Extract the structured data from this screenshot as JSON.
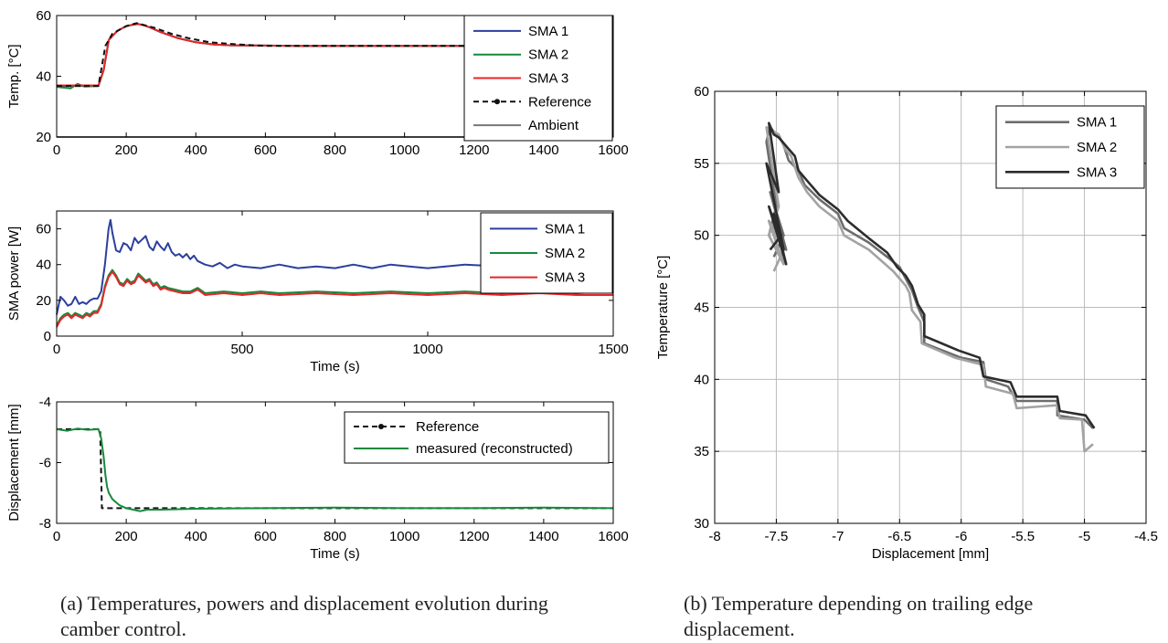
{
  "chart_data": [
    {
      "type": "line",
      "id": "temp",
      "xlabel": "",
      "ylabel": "Temp. [°C]",
      "xlim": [
        0,
        1600
      ],
      "ylim": [
        20,
        60
      ],
      "xticks": [
        0,
        200,
        400,
        600,
        800,
        1000,
        1200,
        1400,
        1600
      ],
      "yticks": [
        20,
        40,
        60
      ],
      "legend_position": "top-right",
      "series": [
        {
          "name": "SMA 1",
          "color": "#2b3f9e",
          "x": [
            0,
            120,
            135,
            150,
            175,
            200,
            220,
            235,
            250,
            270,
            300,
            350,
            400,
            450,
            500,
            600,
            700,
            800,
            900,
            1000,
            1100,
            1200,
            1300,
            1400,
            1500,
            1600
          ],
          "y": [
            36.8,
            36.8,
            42,
            52,
            55,
            56.5,
            57,
            57.2,
            56.8,
            56,
            54.5,
            52.5,
            51.2,
            50.5,
            50.2,
            50.1,
            50,
            50,
            50,
            50,
            50,
            50,
            50,
            50,
            50,
            50
          ]
        },
        {
          "name": "SMA 2",
          "color": "#16893c",
          "x": [
            0,
            40,
            60,
            80,
            120,
            135,
            150,
            175,
            200,
            220,
            235,
            250,
            270,
            300,
            350,
            400,
            450,
            500,
            600,
            700,
            800,
            900,
            1000,
            1100,
            1200,
            1300,
            1400,
            1500,
            1600
          ],
          "y": [
            36.5,
            36,
            37.5,
            36.6,
            36.8,
            42,
            52,
            55,
            56.5,
            57,
            57.2,
            56.8,
            56,
            54.5,
            52.5,
            51.2,
            50.5,
            50.2,
            50.1,
            50,
            50,
            50,
            50,
            50,
            50,
            50,
            50,
            50,
            50
          ]
        },
        {
          "name": "SMA 3",
          "color": "#e8252a",
          "x": [
            0,
            120,
            135,
            150,
            175,
            200,
            220,
            235,
            250,
            270,
            300,
            350,
            400,
            450,
            500,
            600,
            700,
            800,
            900,
            1000,
            1100,
            1200,
            1300,
            1400,
            1500,
            1600
          ],
          "y": [
            37,
            37,
            42,
            52,
            55,
            56.5,
            57,
            57.2,
            56.8,
            56,
            54.5,
            52.5,
            51.2,
            50.5,
            50.2,
            50.1,
            50,
            50,
            50,
            50,
            50,
            50,
            50,
            50,
            50,
            50
          ]
        },
        {
          "name": "Reference",
          "color": "#111111",
          "dash": true,
          "x": [
            0,
            120,
            140,
            160,
            200,
            230,
            280,
            330,
            380,
            440,
            520,
            600,
            800,
            1000,
            1200,
            1400,
            1600
          ],
          "y": [
            36.8,
            36.8,
            50,
            54,
            56.5,
            57.5,
            56,
            54,
            52.5,
            51.2,
            50.5,
            50,
            50,
            50,
            50,
            50,
            50
          ]
        },
        {
          "name": "Ambient",
          "color": "#777777",
          "x": [
            0,
            1600
          ],
          "y": [
            20,
            20
          ]
        }
      ]
    },
    {
      "type": "line",
      "id": "power",
      "xlabel": "Time (s)",
      "ylabel": "SMA power [W]",
      "xlim": [
        0,
        1500
      ],
      "ylim": [
        0,
        70
      ],
      "xticks": [
        0,
        500,
        1000,
        1500
      ],
      "yticks": [
        0,
        20,
        40,
        60
      ],
      "legend_position": "top-right",
      "series": [
        {
          "name": "SMA 1",
          "color": "#2b3f9e",
          "x": [
            0,
            10,
            20,
            30,
            40,
            50,
            60,
            70,
            80,
            90,
            100,
            110,
            120,
            130,
            140,
            145,
            150,
            160,
            170,
            180,
            190,
            200,
            210,
            220,
            230,
            240,
            250,
            260,
            270,
            280,
            290,
            300,
            310,
            320,
            330,
            340,
            350,
            360,
            370,
            380,
            400,
            420,
            440,
            460,
            480,
            500,
            550,
            600,
            650,
            700,
            750,
            800,
            850,
            900,
            950,
            1000,
            1100,
            1200,
            1300,
            1400,
            1500
          ],
          "y": [
            12,
            22,
            20,
            17,
            18,
            22,
            18,
            19,
            18,
            20,
            21,
            21,
            25,
            40,
            60,
            65,
            58,
            48,
            47,
            52,
            51,
            48,
            55,
            52,
            54,
            56,
            50,
            48,
            53,
            50,
            48,
            52,
            47,
            45,
            46,
            44,
            46,
            43,
            45,
            42,
            40,
            39,
            41,
            38,
            40,
            39,
            38,
            40,
            38,
            39,
            38,
            40,
            38,
            40,
            39,
            38,
            40,
            39,
            40,
            39,
            40
          ]
        },
        {
          "name": "SMA 2",
          "color": "#16893c",
          "x": [
            0,
            10,
            20,
            30,
            40,
            50,
            60,
            70,
            80,
            90,
            100,
            110,
            120,
            130,
            140,
            150,
            160,
            170,
            180,
            190,
            200,
            210,
            220,
            230,
            240,
            250,
            260,
            270,
            280,
            290,
            300,
            320,
            340,
            360,
            380,
            400,
            450,
            500,
            550,
            600,
            700,
            800,
            900,
            1000,
            1100,
            1200,
            1300,
            1400,
            1500
          ],
          "y": [
            6,
            10,
            12,
            13,
            11,
            13,
            12,
            11,
            13,
            12,
            14,
            14,
            18,
            28,
            34,
            37,
            34,
            30,
            29,
            32,
            30,
            31,
            35,
            33,
            31,
            32,
            29,
            30,
            27,
            28,
            27,
            26,
            25,
            25,
            27,
            24,
            25,
            24,
            25,
            24,
            25,
            24,
            25,
            24,
            25,
            24,
            25,
            24,
            25
          ]
        },
        {
          "name": "SMA 3",
          "color": "#e8252a",
          "x": [
            0,
            10,
            20,
            30,
            40,
            50,
            60,
            70,
            80,
            90,
            100,
            110,
            120,
            130,
            140,
            150,
            160,
            170,
            180,
            190,
            200,
            210,
            220,
            230,
            240,
            250,
            260,
            270,
            280,
            290,
            300,
            320,
            340,
            360,
            380,
            400,
            450,
            500,
            550,
            600,
            700,
            800,
            900,
            1000,
            1100,
            1200,
            1300,
            1400,
            1500
          ],
          "y": [
            5,
            9,
            11,
            12,
            10,
            12,
            11,
            10,
            12,
            11,
            13,
            13,
            17,
            27,
            33,
            36,
            33,
            29,
            28,
            31,
            29,
            30,
            34,
            32,
            30,
            31,
            28,
            29,
            26,
            27,
            26,
            25,
            24,
            24,
            26,
            23,
            24,
            23,
            24,
            23,
            24,
            23,
            24,
            23,
            24,
            23,
            24,
            23,
            23
          ]
        }
      ]
    },
    {
      "type": "line",
      "id": "disp",
      "xlabel": "Time (s)",
      "ylabel": "Displacement [mm]",
      "xlim": [
        0,
        1600
      ],
      "ylim": [
        -8,
        -4
      ],
      "xticks": [
        0,
        200,
        400,
        600,
        800,
        1000,
        1200,
        1400,
        1600
      ],
      "yticks": [
        -8,
        -6,
        -4
      ],
      "legend_position": "top-right",
      "series": [
        {
          "name": "Reference",
          "color": "#111111",
          "dash": true,
          "x": [
            0,
            125,
            130,
            1600
          ],
          "y": [
            -4.9,
            -4.9,
            -7.5,
            -7.5
          ]
        },
        {
          "name": "measured (reconstructed)",
          "color": "#16893c",
          "x": [
            0,
            30,
            60,
            90,
            120,
            128,
            135,
            140,
            145,
            150,
            160,
            170,
            180,
            200,
            220,
            240,
            260,
            300,
            400,
            600,
            800,
            1000,
            1200,
            1400,
            1600
          ],
          "y": [
            -4.9,
            -4.95,
            -4.88,
            -4.92,
            -4.9,
            -5.2,
            -5.8,
            -6.4,
            -6.8,
            -7.0,
            -7.2,
            -7.3,
            -7.4,
            -7.5,
            -7.55,
            -7.6,
            -7.55,
            -7.55,
            -7.52,
            -7.5,
            -7.48,
            -7.5,
            -7.5,
            -7.48,
            -7.5
          ]
        }
      ]
    },
    {
      "type": "line",
      "id": "tdisp",
      "xlabel": "Displacement [mm]",
      "ylabel": "Temperature [°C]",
      "xlim": [
        -8,
        -4.5
      ],
      "ylim": [
        30,
        60
      ],
      "xticks": [
        -8,
        -7.5,
        -7,
        -6.5,
        -6,
        -5.5,
        -5,
        -4.5
      ],
      "yticks": [
        30,
        35,
        40,
        45,
        50,
        55,
        60
      ],
      "grid": true,
      "legend_position": "top-right",
      "series": [
        {
          "name": "SMA 1",
          "color": "#6d6d6d",
          "x": [
            -4.93,
            -5.0,
            -5.22,
            -5.22,
            -5.55,
            -5.62,
            -5.8,
            -5.82,
            -6.0,
            -6.3,
            -6.3,
            -6.35,
            -6.4,
            -6.45,
            -6.5,
            -6.6,
            -6.75,
            -6.95,
            -7.0,
            -7.15,
            -7.27,
            -7.32,
            -7.4,
            -7.45,
            -7.5,
            -7.55,
            -7.58,
            -7.5,
            -7.56,
            -7.44,
            -7.56,
            -7.42,
            -7.55,
            -7.44,
            -7.52
          ],
          "y": [
            36.6,
            37.2,
            37.5,
            38.5,
            38.5,
            39.5,
            40.0,
            41.2,
            41.5,
            42.5,
            44.0,
            45.0,
            46.2,
            47.0,
            47.8,
            48.5,
            49.5,
            50.5,
            51.5,
            52.5,
            53.5,
            54.5,
            55.2,
            56.5,
            57.0,
            57.5,
            56.5,
            52.0,
            50.0,
            48.0,
            51.0,
            49.0,
            53.0,
            50.0,
            48.5
          ]
        },
        {
          "name": "SMA 2",
          "color": "#a3a3a3",
          "x": [
            -4.93,
            -5.0,
            -5.02,
            -5.2,
            -5.22,
            -5.55,
            -5.58,
            -5.8,
            -5.82,
            -6.05,
            -6.32,
            -6.33,
            -6.4,
            -6.42,
            -6.45,
            -6.5,
            -6.55,
            -6.75,
            -6.95,
            -7.0,
            -7.15,
            -7.25,
            -7.32,
            -7.38,
            -7.43,
            -7.48,
            -7.58,
            -7.48,
            -7.56,
            -7.44,
            -7.56,
            -7.44,
            -7.52
          ],
          "y": [
            35.5,
            35.0,
            37.2,
            37.3,
            38.2,
            38.0,
            39.0,
            39.5,
            41.0,
            41.5,
            42.5,
            44.0,
            44.8,
            46.0,
            46.5,
            47.0,
            47.5,
            49.0,
            50.0,
            51.0,
            52.0,
            53.0,
            54.0,
            55.5,
            56.0,
            57.0,
            57.5,
            52.0,
            50.0,
            48.0,
            51.0,
            49.0,
            47.5
          ]
        },
        {
          "name": "SMA 3",
          "color": "#2c2c2c",
          "x": [
            -4.92,
            -4.99,
            -5.2,
            -5.22,
            -5.55,
            -5.6,
            -5.82,
            -5.85,
            -6.02,
            -6.3,
            -6.3,
            -6.35,
            -6.4,
            -6.45,
            -6.52,
            -6.6,
            -6.75,
            -6.92,
            -7.0,
            -7.15,
            -7.25,
            -7.32,
            -7.35,
            -7.4,
            -7.48,
            -7.52,
            -7.56,
            -7.48,
            -7.58,
            -7.44,
            -7.56,
            -7.42,
            -7.52,
            -7.46,
            -7.55
          ],
          "y": [
            36.6,
            37.5,
            37.8,
            38.8,
            38.8,
            39.8,
            40.2,
            41.5,
            42.0,
            43.0,
            44.5,
            45.2,
            46.5,
            47.2,
            47.8,
            48.8,
            49.8,
            51.0,
            51.8,
            52.8,
            53.8,
            54.5,
            55.5,
            56.0,
            56.8,
            57.0,
            57.8,
            53.0,
            55.0,
            49.0,
            52.0,
            48.0,
            51.5,
            50.0,
            49.0
          ]
        }
      ]
    }
  ],
  "captions": {
    "a": "(a) Temperatures, powers and displacement evolution during camber control.",
    "b": "(b) Temperature depending on trailing edge displacement."
  }
}
